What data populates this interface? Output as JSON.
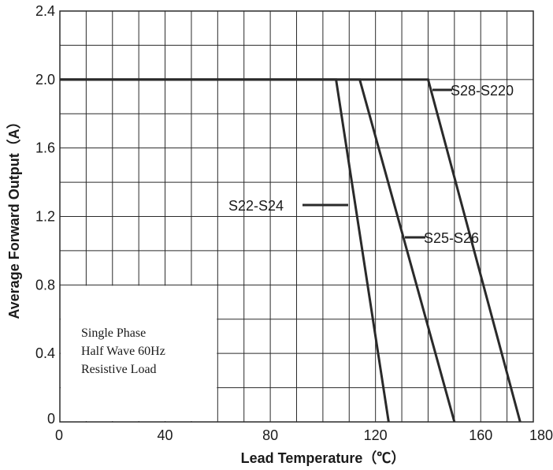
{
  "chart_data": {
    "type": "line",
    "xlabel": "Lead Temperature（℃）",
    "ylabel": "Average Forward Output（A）",
    "xlim": [
      0,
      180
    ],
    "ylim": [
      0,
      2.4
    ],
    "x_ticks": [
      0,
      40,
      80,
      120,
      160,
      180
    ],
    "x_tick_labels": [
      "0",
      "40",
      "80",
      "120",
      "160",
      "180"
    ],
    "y_ticks": [
      0,
      0.4,
      0.8,
      1.2,
      1.6,
      2.0,
      2.4
    ],
    "y_tick_labels": [
      "0",
      "0.4",
      "0.8",
      "1.2",
      "1.6",
      "2.0",
      "2.4"
    ],
    "grid": true,
    "series": [
      {
        "name": "S22-S24",
        "points": [
          [
            0,
            2.0
          ],
          [
            105,
            2.0
          ],
          [
            125,
            0
          ]
        ]
      },
      {
        "name": "S25-S26",
        "points": [
          [
            0,
            2.0
          ],
          [
            114,
            2.0
          ],
          [
            150,
            0
          ]
        ]
      },
      {
        "name": "S28-S220",
        "points": [
          [
            0,
            2.0
          ],
          [
            140,
            2.0
          ],
          [
            175,
            0
          ]
        ]
      }
    ],
    "annotation": [
      "Single Phase",
      "Half Wave 60Hz",
      "Resistive Load"
    ],
    "colors": {
      "line": "#2a2a2a",
      "grid": "#2a2a2a"
    }
  }
}
